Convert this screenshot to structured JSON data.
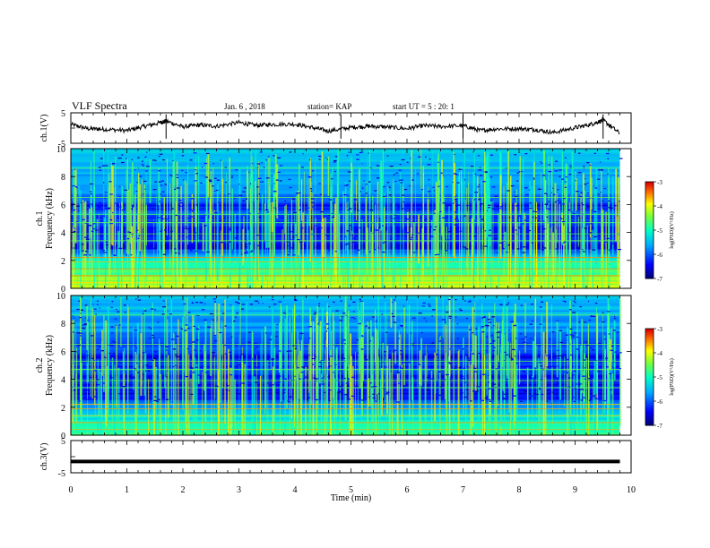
{
  "header": {
    "title": "VLF Spectra",
    "date": "Jan. 6 , 2018",
    "station": "station= KAP",
    "start": "start UT = 5 : 20: 1"
  },
  "chart_data": [
    {
      "type": "line",
      "panel": "ch1-waveform",
      "ylabel": "ch.1(V)",
      "ylim": [
        -5,
        5
      ],
      "y_ticks": [
        "5",
        "-5"
      ],
      "x_range": [
        0,
        10
      ],
      "x_coverage_end": 9.8,
      "series": [
        {
          "x": [
            0,
            0.3,
            0.6,
            1.0,
            1.3,
            1.6,
            1.7,
            2.0,
            2.3,
            2.6,
            3.0,
            3.3,
            3.6,
            4.0,
            4.3,
            4.6,
            5.0,
            5.3,
            5.6,
            6.0,
            6.3,
            6.6,
            7.0,
            7.3,
            7.6,
            8.0,
            8.3,
            8.6,
            9.0,
            9.3,
            9.5,
            9.8
          ],
          "values": [
            1.2,
            -0.2,
            -0.4,
            -0.8,
            0.5,
            1.8,
            2.3,
            0.4,
            1.0,
            0.6,
            1.8,
            0.9,
            1.2,
            1.3,
            0.2,
            -1.0,
            0.2,
            0.6,
            0.4,
            -0.2,
            0.8,
            0.5,
            0.8,
            -0.8,
            -0.3,
            -0.2,
            -0.5,
            -1.5,
            0.1,
            1.3,
            2.6,
            -1.8
          ]
        }
      ]
    },
    {
      "type": "heatmap",
      "panel": "ch1-spectrogram",
      "ylabel": "ch.1",
      "ylabel2": "Frequency (kHz)",
      "ylim": [
        0,
        10
      ],
      "y_ticks": [
        "0",
        "2",
        "4",
        "6",
        "8",
        "10"
      ],
      "x_range": [
        0,
        10
      ],
      "x_coverage_end": 9.8,
      "colorbar": {
        "label": "log(PSD)(V²/Hz)",
        "range": [
          -7,
          -3
        ],
        "ticks": [
          "-3",
          "-4",
          "-5",
          "-6",
          "-7"
        ]
      },
      "frequency_profile": [
        {
          "f": 0.0,
          "level": -4.0
        },
        {
          "f": 0.5,
          "level": -4.2
        },
        {
          "f": 1.0,
          "level": -4.6
        },
        {
          "f": 1.5,
          "level": -4.9
        },
        {
          "f": 2.0,
          "level": -5.0
        },
        {
          "f": 2.5,
          "level": -5.6
        },
        {
          "f": 3.0,
          "level": -6.6
        },
        {
          "f": 3.5,
          "level": -6.2
        },
        {
          "f": 4.0,
          "level": -6.5
        },
        {
          "f": 4.5,
          "level": -6.3
        },
        {
          "f": 5.0,
          "level": -6.1
        },
        {
          "f": 5.5,
          "level": -6.0
        },
        {
          "f": 6.0,
          "level": -6.3
        },
        {
          "f": 6.5,
          "level": -5.9
        },
        {
          "f": 7.0,
          "level": -5.7
        },
        {
          "f": 8.0,
          "level": -5.6
        },
        {
          "f": 9.0,
          "level": -5.5
        },
        {
          "f": 10.0,
          "level": -5.4
        }
      ]
    },
    {
      "type": "heatmap",
      "panel": "ch2-spectrogram",
      "ylabel": "ch.2",
      "ylabel2": "Frequency (kHz)",
      "ylim": [
        0,
        10
      ],
      "y_ticks": [
        "0",
        "2",
        "4",
        "6",
        "8",
        "10"
      ],
      "x_range": [
        0,
        10
      ],
      "x_coverage_end": 9.8,
      "colorbar": {
        "label": "log(PSD)(V²/Hz)",
        "range": [
          -7,
          -3
        ],
        "ticks": [
          "-3",
          "-4",
          "-5",
          "-6",
          "-7"
        ]
      },
      "frequency_profile": [
        {
          "f": 0.0,
          "level": -4.6
        },
        {
          "f": 0.5,
          "level": -4.8
        },
        {
          "f": 1.0,
          "level": -5.1
        },
        {
          "f": 1.5,
          "level": -5.3
        },
        {
          "f": 2.0,
          "level": -5.5
        },
        {
          "f": 2.5,
          "level": -6.1
        },
        {
          "f": 3.0,
          "level": -6.5
        },
        {
          "f": 3.5,
          "level": -6.3
        },
        {
          "f": 4.0,
          "level": -6.4
        },
        {
          "f": 4.5,
          "level": -6.2
        },
        {
          "f": 5.0,
          "level": -6.2
        },
        {
          "f": 5.5,
          "level": -6.4
        },
        {
          "f": 6.0,
          "level": -6.2
        },
        {
          "f": 6.5,
          "level": -6.0
        },
        {
          "f": 7.0,
          "level": -5.8
        },
        {
          "f": 8.0,
          "level": -5.7
        },
        {
          "f": 9.0,
          "level": -5.5
        },
        {
          "f": 10.0,
          "level": -5.4
        }
      ]
    },
    {
      "type": "line",
      "panel": "ch3-waveform",
      "ylabel": "ch.3(V)",
      "ylim": [
        -5,
        5
      ],
      "y_ticks": [
        "5",
        "-5"
      ],
      "xlabel": "Time (min)",
      "x_range": [
        0,
        10
      ],
      "x_ticks": [
        "0",
        "1",
        "2",
        "3",
        "4",
        "5",
        "6",
        "7",
        "8",
        "9",
        "10"
      ],
      "series": [
        {
          "x": [
            0,
            9.8
          ],
          "values": [
            -1.5,
            -1.5
          ]
        }
      ]
    }
  ]
}
